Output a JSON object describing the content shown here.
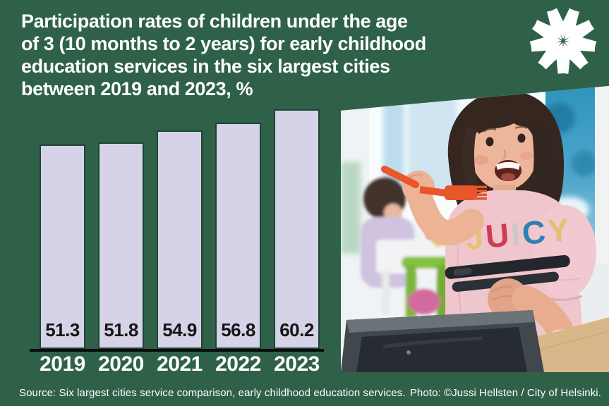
{
  "page": {
    "background_color": "#2f6149"
  },
  "header": {
    "title_lines": [
      "Participation rates of children under the age",
      "of 3 (10 months to 2 years) for early childhood",
      "education services in the six largest cities",
      "between 2019 and 2023, %"
    ],
    "logo_icon": "v-starburst-logo",
    "logo_color": "#ffffff"
  },
  "chart_data": {
    "type": "bar",
    "title": "Participation rates of children under the age of 3 (10 months to 2 years) for early childhood education services in the six largest cities between 2019 and 2023, %",
    "categories": [
      "2019",
      "2020",
      "2021",
      "2022",
      "2023"
    ],
    "values": [
      51.3,
      51.8,
      54.9,
      56.8,
      60.2
    ],
    "value_labels": [
      "51.3",
      "51.8",
      "54.9",
      "56.8",
      "60.2"
    ],
    "xlabel": "",
    "ylabel": "",
    "ylim": [
      0,
      62
    ],
    "grid": false,
    "legend": false,
    "bar_color": "#d6d2e8",
    "bar_border_color": "#1c4534",
    "value_label_color": "#151515",
    "category_label_color": "#ffffff",
    "baseline_color": "#0b0b0b"
  },
  "photo": {
    "description": "Smiling toddler with dark bobbed hair in a pink t-shirt holding an orange fork and black tongs; second child at a table with a green chair in the bright daycare background; dark grey tub in the foreground",
    "shirt_letters": [
      "J",
      "U",
      "I",
      "C",
      "Y"
    ],
    "shirt_letter_colors": [
      "#e7c276",
      "#cf3b57",
      "#c9c9c9",
      "#2f80b4",
      "#e3c077"
    ]
  },
  "footer": {
    "source": "Source: Six largest cities service comparison, early childhood education services.",
    "photo_credit": "Photo: ©Jussi Hellsten / City of Helsinki."
  }
}
